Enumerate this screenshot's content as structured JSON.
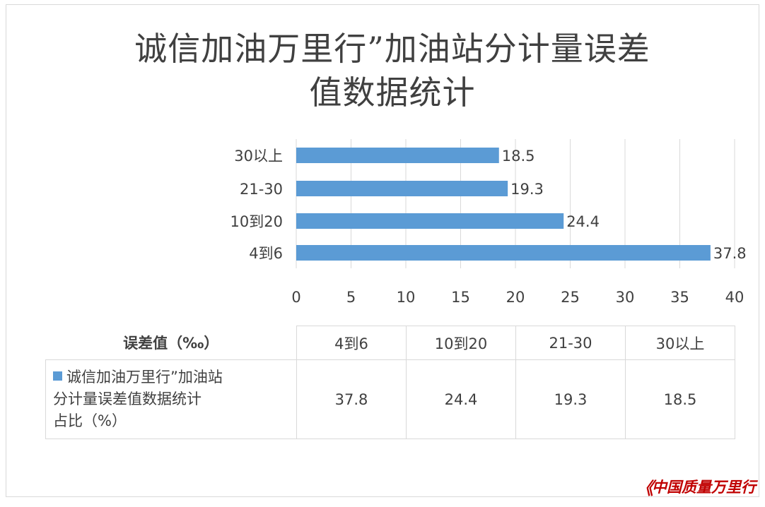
{
  "chart_data": {
    "type": "bar",
    "orientation": "horizontal",
    "title": "诚信加油万里行”加油站分计量误差值数据统计",
    "title_lines": [
      "诚信加油万里行”加油站分计量误差",
      "值数据统计"
    ],
    "categories": [
      "30以上",
      "21-30",
      "10到20",
      "4到6"
    ],
    "series": [
      {
        "name": "诚信加油万里行”加油站分计量误差值数据统计占比（%）",
        "values": [
          18.5,
          19.3,
          24.4,
          37.8
        ],
        "color": "#5b9bd5"
      }
    ],
    "x_ticks": [
      "0",
      "5",
      "10",
      "15",
      "20",
      "25",
      "30",
      "35",
      "40"
    ],
    "xlim": [
      0,
      40
    ],
    "grid": "vertical",
    "data_labels": [
      "18.5",
      "19.3",
      "24.4",
      "37.8"
    ]
  },
  "table": {
    "header_label": "误差值（‰）",
    "columns": [
      "4到6",
      "10到20",
      "21-30",
      "30以上"
    ],
    "legend_lines": [
      "诚信加油万里行”加油站",
      "分计量误差值数据统计",
      "占比（%）"
    ],
    "values": [
      "37.8",
      "24.4",
      "19.3",
      "18.5"
    ]
  },
  "logo": {
    "text": "中国质量万里行",
    "mark": "《",
    "color": "#c00000"
  }
}
